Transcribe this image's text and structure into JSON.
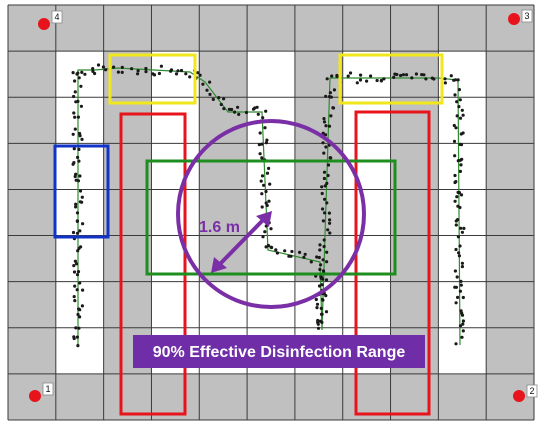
{
  "anchors": [
    {
      "label": "4"
    },
    {
      "label": "3"
    },
    {
      "label": "1"
    },
    {
      "label": "2"
    }
  ],
  "radius_label": "1.6 m",
  "banner_text": "90% Effective Disinfection Range",
  "colors": {
    "anchor": "#e8141b",
    "grid_cell": "#c0c0c0",
    "grid_line": "#3a3a3a",
    "path_dot": "#1a1a1a",
    "path_line": "#2e8b2e",
    "yellow_zone": "#f2e61d",
    "red_zone": "#e8141b",
    "blue_zone": "#1233c8",
    "green_zone": "#1e8f1e",
    "range_circle": "#7b2fa6",
    "banner_bg": "#6f2da8",
    "banner_text": "#ffffff"
  }
}
